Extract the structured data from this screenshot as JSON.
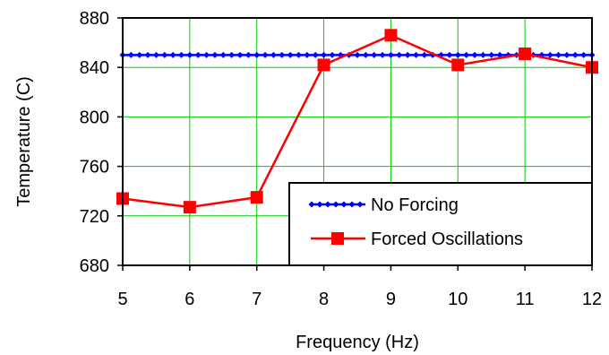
{
  "chart_data": {
    "type": "line",
    "xlabel": "Frequency (Hz)",
    "ylabel": "Temperature (C)",
    "xlim": [
      5,
      12
    ],
    "ylim": [
      680,
      880
    ],
    "x_ticks": [
      5,
      6,
      7,
      8,
      9,
      10,
      11,
      12
    ],
    "y_ticks": [
      680,
      720,
      760,
      800,
      840,
      880
    ],
    "grid": true,
    "grid_color": "#00cc00",
    "legend_position": "bottom-right",
    "series": [
      {
        "name": "No Forcing",
        "color": "#0000ff",
        "marker": "diamond",
        "x": [
          5,
          5.125,
          5.25,
          5.375,
          5.5,
          5.625,
          5.75,
          5.875,
          6,
          6.125,
          6.25,
          6.375,
          6.5,
          6.625,
          6.75,
          6.875,
          7,
          7.125,
          7.25,
          7.375,
          7.5,
          7.625,
          7.75,
          7.875,
          8,
          8.125,
          8.25,
          8.375,
          8.5,
          8.625,
          8.75,
          8.875,
          9,
          9.125,
          9.25,
          9.375,
          9.5,
          9.625,
          9.75,
          9.875,
          10,
          10.125,
          10.25,
          10.375,
          10.5,
          10.625,
          10.75,
          10.875,
          11,
          11.125,
          11.25,
          11.375,
          11.5,
          11.625,
          11.75,
          11.875,
          12
        ],
        "y": [
          850,
          850,
          850,
          850,
          850,
          850,
          850,
          850,
          850,
          850,
          850,
          850,
          850,
          850,
          850,
          850,
          850,
          850,
          850,
          850,
          850,
          850,
          850,
          850,
          850,
          850,
          850,
          850,
          850,
          850,
          850,
          850,
          850,
          850,
          850,
          850,
          850,
          850,
          850,
          850,
          850,
          850,
          850,
          850,
          850,
          850,
          850,
          850,
          850,
          850,
          850,
          850,
          850,
          850,
          850,
          850,
          850
        ]
      },
      {
        "name": "Forced Oscillations",
        "color": "#ff0000",
        "marker": "square",
        "x": [
          5,
          6,
          7,
          8,
          9,
          10,
          11,
          12
        ],
        "y": [
          734,
          727,
          735,
          842,
          866,
          842,
          851,
          840
        ]
      }
    ]
  }
}
